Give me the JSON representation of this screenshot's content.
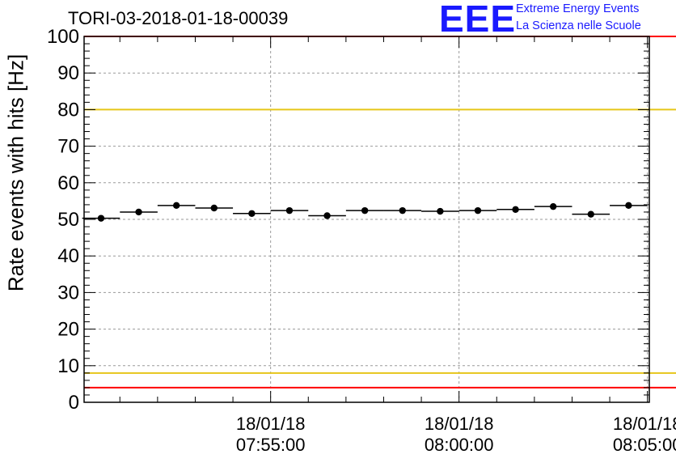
{
  "chart_data": {
    "type": "scatter",
    "title": "TORI-03-2018-01-18-00039",
    "ylabel": "Rate events with hits [Hz]",
    "xlabel": "",
    "ylim": [
      0,
      100
    ],
    "yticks": [
      0,
      10,
      20,
      30,
      40,
      50,
      60,
      70,
      80,
      90,
      100
    ],
    "x_unit": "minutes since 07:50:00",
    "xlim": [
      -1.95,
      13.05
    ],
    "x_ticks": [
      {
        "x": 3,
        "date": "18/01/18",
        "time": "07:55:00"
      },
      {
        "x": 8,
        "date": "18/01/18",
        "time": "08:00:00"
      },
      {
        "x": 13,
        "date": "18/01/18",
        "time": "08:05:00"
      }
    ],
    "bin_width": 1,
    "series": [
      {
        "name": "rate",
        "x": [
          -1.5,
          -0.5,
          0.5,
          1.5,
          2.5,
          3.5,
          4.5,
          5.5,
          6.5,
          7.5,
          8.5,
          9.5,
          10.5,
          11.5,
          12.5
        ],
        "values": [
          50.3,
          52.0,
          53.8,
          53.1,
          51.6,
          52.4,
          51.0,
          52.4,
          52.4,
          52.2,
          52.4,
          52.7,
          53.5,
          51.4,
          53.8
        ]
      }
    ],
    "reference_lines": [
      {
        "name": "upper-red",
        "y": 100,
        "color": "#ff0000"
      },
      {
        "name": "upper-yellow",
        "y": 80,
        "color": "#e6c619"
      },
      {
        "name": "lower-yellow",
        "y": 8,
        "color": "#e6c619"
      },
      {
        "name": "lower-red",
        "y": 4,
        "color": "#ff0000"
      }
    ]
  },
  "logo": {
    "text": "EEE",
    "line1": "Extreme Energy Events",
    "line2": "La Scienza nelle Scuole",
    "color": "#1a1aff"
  }
}
